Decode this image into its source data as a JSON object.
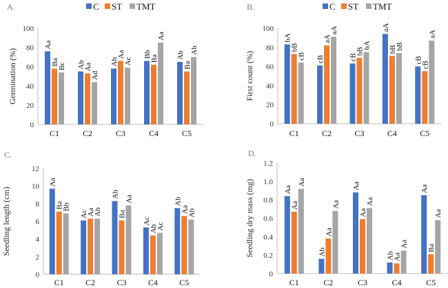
{
  "colors": {
    "C": "#4472C4",
    "ST": "#ED7D31",
    "TMT": "#A5A5A5"
  },
  "chart_data": [
    {
      "panel_label": "A.",
      "type": "bar",
      "ylabel": "Germination (%)",
      "ylim": [
        0,
        100
      ],
      "yticks": [
        "0",
        "20",
        "40",
        "60",
        "80",
        "100"
      ],
      "legend": "top-center",
      "categories": [
        "C1",
        "C2",
        "C3",
        "C4",
        "C5"
      ],
      "series": [
        {
          "name": "C",
          "values": [
            76,
            55,
            58,
            66,
            65
          ],
          "labels": [
            "Aa",
            "Ab",
            "Ab",
            "Bb",
            "Ab"
          ]
        },
        {
          "name": "ST",
          "values": [
            58,
            53,
            66,
            62,
            55
          ],
          "labels": [
            "Ba",
            "Aa",
            "Aa",
            "Ba",
            "Ba"
          ]
        },
        {
          "name": "TMT",
          "values": [
            54,
            44,
            59,
            85,
            70
          ],
          "labels": [
            "Bc",
            "Ad",
            "Ac",
            "Aa",
            "Ab"
          ]
        }
      ]
    },
    {
      "panel_label": "B.",
      "type": "bar",
      "ylabel": "First count  (%)",
      "ylim": [
        0,
        100
      ],
      "yticks": [
        "0",
        "20",
        "40",
        "60",
        "80",
        "100"
      ],
      "legend": "top-center",
      "categories": [
        "C1",
        "C2",
        "C3",
        "C4",
        "C5"
      ],
      "series": [
        {
          "name": "C",
          "values": [
            83,
            61,
            63,
            94,
            60
          ],
          "labels": [
            "bA",
            "cB",
            "cB",
            "aA",
            "cB"
          ]
        },
        {
          "name": "ST",
          "values": [
            73,
            82,
            69,
            71,
            55
          ],
          "labels": [
            "bB",
            "aA",
            "bB",
            "bB",
            "cB"
          ]
        },
        {
          "name": "TMT",
          "values": [
            64,
            91,
            75,
            74,
            87
          ],
          "labels": [
            "cB",
            "aA",
            "bA",
            "bB",
            "aA"
          ]
        }
      ]
    },
    {
      "panel_label": "C.",
      "type": "bar",
      "ylabel": "Seedling length (cm)",
      "ylim": [
        0,
        12
      ],
      "yticks": [
        "0",
        "2",
        "4",
        "6",
        "8",
        "10",
        "12"
      ],
      "legend": "none",
      "categories": [
        "C1",
        "C2",
        "C3",
        "C4",
        "C5"
      ],
      "series": [
        {
          "name": "C",
          "values": [
            9.7,
            6.1,
            8.3,
            5.3,
            7.5
          ],
          "labels": [
            "Aa",
            "Ac",
            "Ab",
            "Ac",
            "Ab"
          ]
        },
        {
          "name": "ST",
          "values": [
            7.1,
            6.3,
            6.1,
            4.4,
            6.6
          ],
          "labels": [
            "Ba",
            "Aa",
            "Ba",
            "Ab",
            "Aa"
          ]
        },
        {
          "name": "TMT",
          "values": [
            6.9,
            6.3,
            7.8,
            4.7,
            6.2
          ],
          "labels": [
            "Bb",
            "Ab",
            "Aa",
            "Ac",
            "Ab"
          ]
        }
      ]
    },
    {
      "panel_label": "D.",
      "type": "bar",
      "ylabel": "Seedling  dry mass (mg)",
      "ylim": [
        0,
        1.2
      ],
      "yticks": [
        "0",
        "0.2",
        "0.4",
        "0.6",
        "0.8",
        "1.0",
        "1.2"
      ],
      "legend": "none",
      "categories": [
        "C1",
        "C2",
        "C3",
        "C4",
        "C5"
      ],
      "series": [
        {
          "name": "C",
          "values": [
            0.84,
            0.16,
            0.88,
            0.12,
            0.85
          ],
          "labels": [
            "Aa",
            "Ab",
            "Aa",
            "Ab",
            "Aa"
          ]
        },
        {
          "name": "ST",
          "values": [
            0.67,
            0.38,
            0.59,
            0.11,
            0.21
          ],
          "labels": [
            "Aa",
            "Aa",
            "Aa",
            "Aa",
            "Ba"
          ]
        },
        {
          "name": "TMT",
          "values": [
            0.92,
            0.68,
            0.71,
            0.25,
            0.58
          ],
          "labels": [
            "Aa",
            "Aa",
            "Aa",
            "Aa",
            "Aa"
          ]
        }
      ]
    }
  ]
}
